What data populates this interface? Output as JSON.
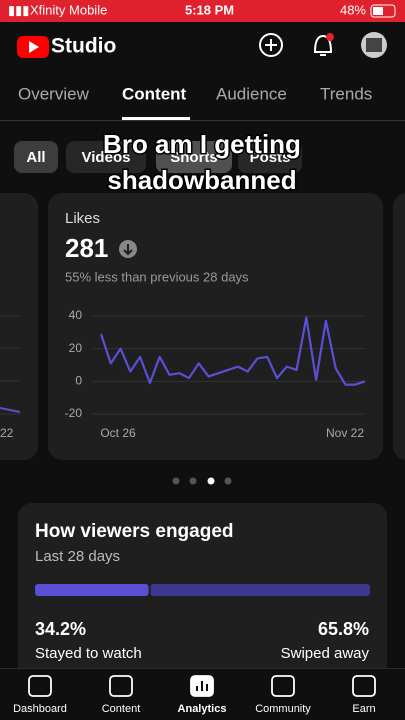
{
  "status_bar": {
    "carrier": "Xfinity Mobile",
    "time": "5:18 PM",
    "battery": "48%"
  },
  "header": {
    "app_name": "Studio"
  },
  "tabs": [
    "Overview",
    "Content",
    "Audience",
    "Trends"
  ],
  "filters": [
    "All",
    "Videos",
    "Shorts",
    "Posts"
  ],
  "caption": [
    "Bro am I getting",
    "shadowbanned"
  ],
  "left_card": {
    "x_label": "22"
  },
  "likes_card": {
    "title": "Likes",
    "value": "281",
    "comparison": "55% less than previous 28 days",
    "chart": {
      "type": "line",
      "color": "#5b4fd6",
      "x_labels": [
        "Oct 26",
        "Nov 22"
      ],
      "ylim": [
        -20,
        40
      ],
      "yticks": [
        40,
        20,
        0,
        -20
      ],
      "values": [
        29,
        11,
        20,
        6,
        15,
        -1,
        15,
        4,
        5,
        2,
        11,
        3,
        5,
        7,
        9,
        6,
        14,
        15,
        2,
        9,
        7,
        39,
        1,
        37,
        8,
        -2,
        -2,
        0
      ]
    }
  },
  "engagement": {
    "title": "How viewers engaged",
    "subtitle": "Last 28 days",
    "stayed": {
      "value": 34.2,
      "label": "34.2%",
      "caption": "Stayed to watch"
    },
    "swiped": {
      "value": 65.8,
      "label": "65.8%",
      "caption": "Swiped away"
    }
  },
  "nav": [
    "Dashboard",
    "Content",
    "Analytics",
    "Community",
    "Earn"
  ]
}
